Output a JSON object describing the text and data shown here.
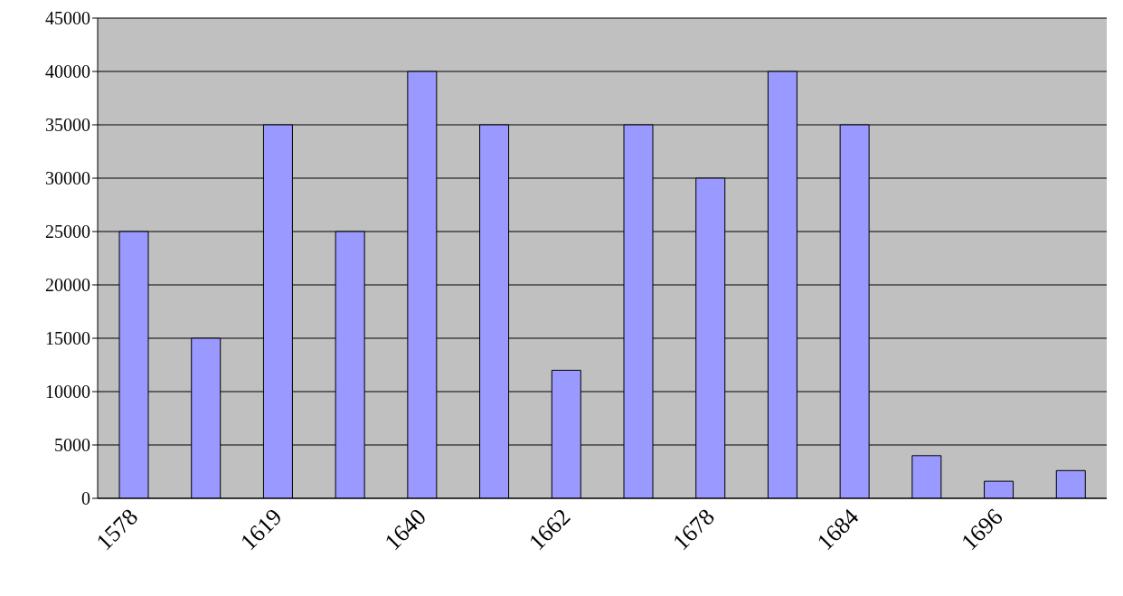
{
  "chart_data": {
    "type": "bar",
    "categories": [
      "1578",
      null,
      "1619",
      null,
      "1640",
      null,
      "1662",
      null,
      "1678",
      null,
      "1684",
      null,
      "1696",
      null
    ],
    "values": [
      25000,
      15000,
      35000,
      25000,
      40000,
      35000,
      12000,
      35000,
      30000,
      40000,
      35000,
      4000,
      1600,
      2600
    ],
    "color": "#9999ff",
    "ylim": [
      0,
      45000
    ],
    "yticks": [
      0,
      5000,
      10000,
      15000,
      20000,
      25000,
      30000,
      35000,
      40000,
      45000
    ],
    "grid": "y"
  }
}
